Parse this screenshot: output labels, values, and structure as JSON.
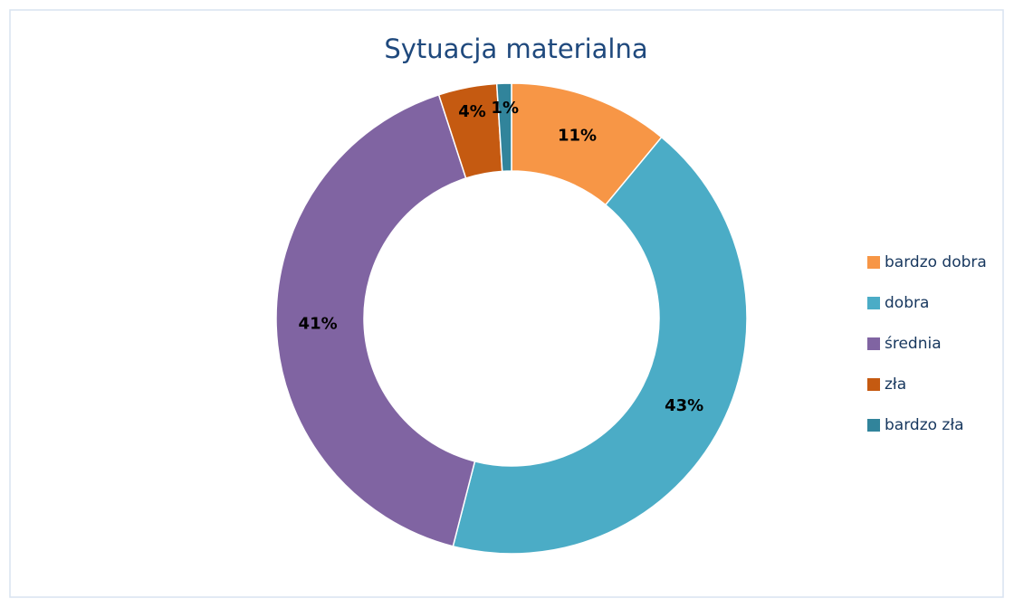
{
  "chart_data": {
    "type": "donut",
    "title": "Sytuacja materialna",
    "categories": [
      "bardzo dobra",
      "dobra",
      "średnia",
      "zła",
      "bardzo zła"
    ],
    "values": [
      11,
      43,
      41,
      4,
      1
    ],
    "value_labels": [
      "11%",
      "43%",
      "41%",
      "4%",
      "1%"
    ],
    "colors": [
      "#f79646",
      "#4bacc6",
      "#8064a2",
      "#c55a11",
      "#31849b"
    ],
    "legend": "right"
  }
}
